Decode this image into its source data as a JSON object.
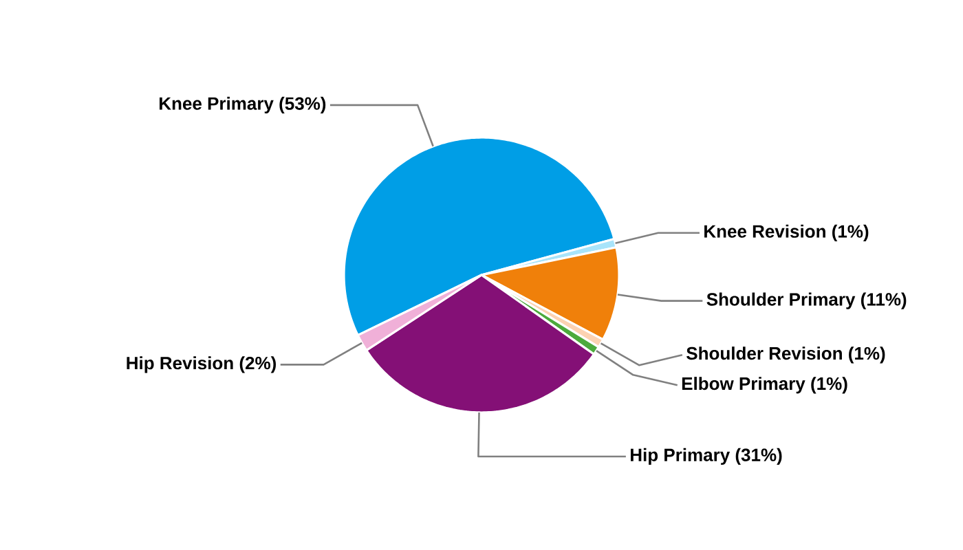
{
  "chart_data": {
    "type": "pie",
    "categories": [
      "Knee Primary (53%)",
      "Knee Revision (1%)",
      "Shoulder Primary (11%)",
      "Shoulder Revision (1%)",
      "Elbow Primary (1%)",
      "Hip Primary (31%)",
      "Hip Revision (2%)"
    ],
    "values": [
      53,
      1,
      11,
      1,
      1,
      31,
      2
    ],
    "colors": [
      "#009ee6",
      "#a8e4fa",
      "#f0800a",
      "#fcd2b2",
      "#4caa3c",
      "#841076",
      "#f0b0d8"
    ]
  }
}
